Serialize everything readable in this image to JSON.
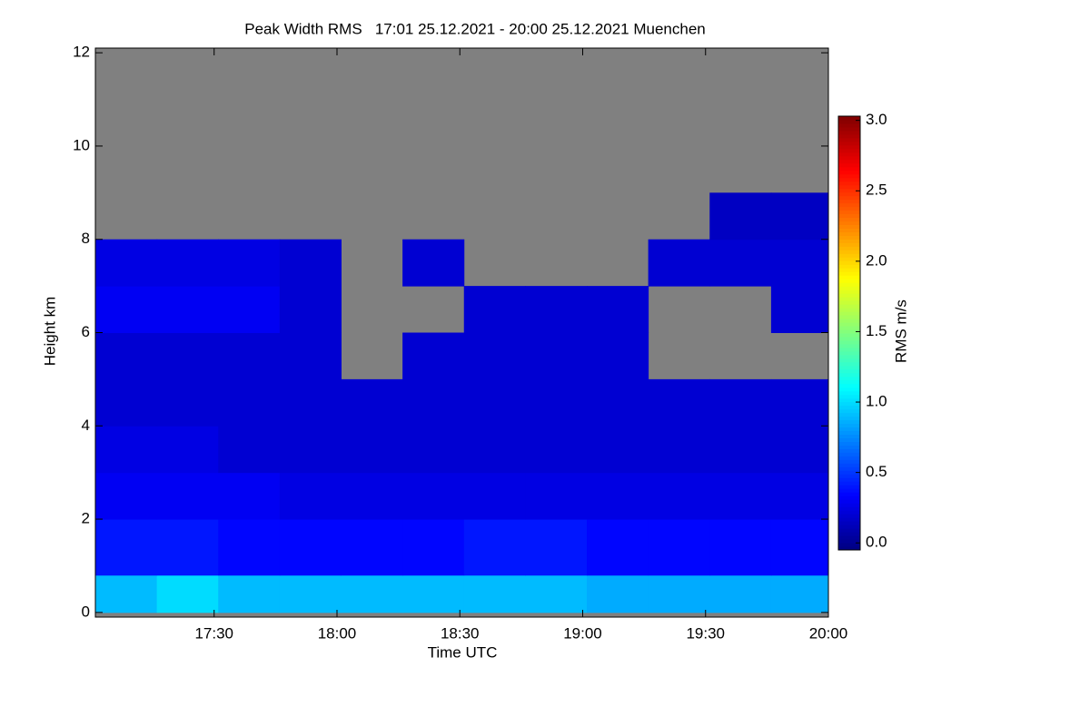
{
  "chart_data": {
    "type": "heatmap",
    "title": "Peak Width RMS   17:01 25.12.2021 - 20:00 25.12.2021 Muenchen",
    "x_label": "Time UTC",
    "y_label": "Height km",
    "colorbar_label": "RMS m/s",
    "colormap": "jet",
    "missing_color": "#808080",
    "x_edges": [
      1021,
      1036,
      1051,
      1066,
      1081,
      1096,
      1111,
      1126,
      1141,
      1156,
      1171,
      1186,
      1200
    ],
    "y_edges": [
      0,
      0.8,
      2,
      3,
      4,
      5,
      6,
      7,
      8,
      9,
      12
    ],
    "values": [
      [
        0.9,
        1.0,
        0.9,
        0.9,
        0.9,
        0.9,
        0.9,
        0.9,
        0.85,
        0.85,
        0.85,
        0.85
      ],
      [
        0.4,
        0.4,
        0.35,
        0.35,
        0.35,
        0.35,
        0.4,
        0.4,
        0.35,
        0.35,
        0.35,
        0.35
      ],
      [
        0.3,
        0.3,
        0.3,
        0.25,
        0.25,
        0.25,
        0.25,
        0.25,
        0.25,
        0.25,
        0.25,
        0.25
      ],
      [
        0.25,
        0.25,
        0.2,
        0.2,
        0.2,
        0.2,
        0.2,
        0.2,
        0.2,
        0.2,
        0.2,
        0.2
      ],
      [
        0.2,
        0.2,
        0.2,
        0.2,
        0.2,
        0.2,
        0.2,
        0.2,
        0.2,
        0.2,
        0.2,
        0.2
      ],
      [
        0.2,
        0.2,
        0.2,
        0.2,
        null,
        0.2,
        0.2,
        0.2,
        0.2,
        null,
        null,
        null
      ],
      [
        0.3,
        0.3,
        0.3,
        0.2,
        null,
        null,
        0.2,
        0.2,
        0.2,
        null,
        null,
        0.2
      ],
      [
        0.25,
        0.25,
        0.25,
        0.2,
        null,
        0.2,
        null,
        null,
        null,
        0.2,
        0.2,
        0.2
      ],
      [
        null,
        null,
        null,
        null,
        null,
        null,
        null,
        null,
        null,
        null,
        0.15,
        0.15
      ],
      [
        null,
        null,
        null,
        null,
        null,
        null,
        null,
        null,
        null,
        null,
        null,
        null
      ]
    ],
    "xlim": [
      1021,
      1200
    ],
    "xticks": [
      {
        "value": 1050,
        "label": "17:30"
      },
      {
        "value": 1080,
        "label": "18:00"
      },
      {
        "value": 1110,
        "label": "18:30"
      },
      {
        "value": 1140,
        "label": "19:00"
      },
      {
        "value": 1170,
        "label": "19:30"
      },
      {
        "value": 1200,
        "label": "20:00"
      }
    ],
    "ylim": [
      -0.1,
      12.1
    ],
    "yticks": [
      0,
      2,
      4,
      6,
      8,
      10,
      12
    ],
    "clim": [
      -0.05,
      3.03
    ],
    "cticks": [
      {
        "value": 0,
        "label": "0.0"
      },
      {
        "value": 0.5,
        "label": "0.5"
      },
      {
        "value": 1,
        "label": "1.0"
      },
      {
        "value": 1.5,
        "label": "1.5"
      },
      {
        "value": 2,
        "label": "2.0"
      },
      {
        "value": 2.5,
        "label": "2.5"
      },
      {
        "value": 3,
        "label": "3.0"
      }
    ]
  }
}
